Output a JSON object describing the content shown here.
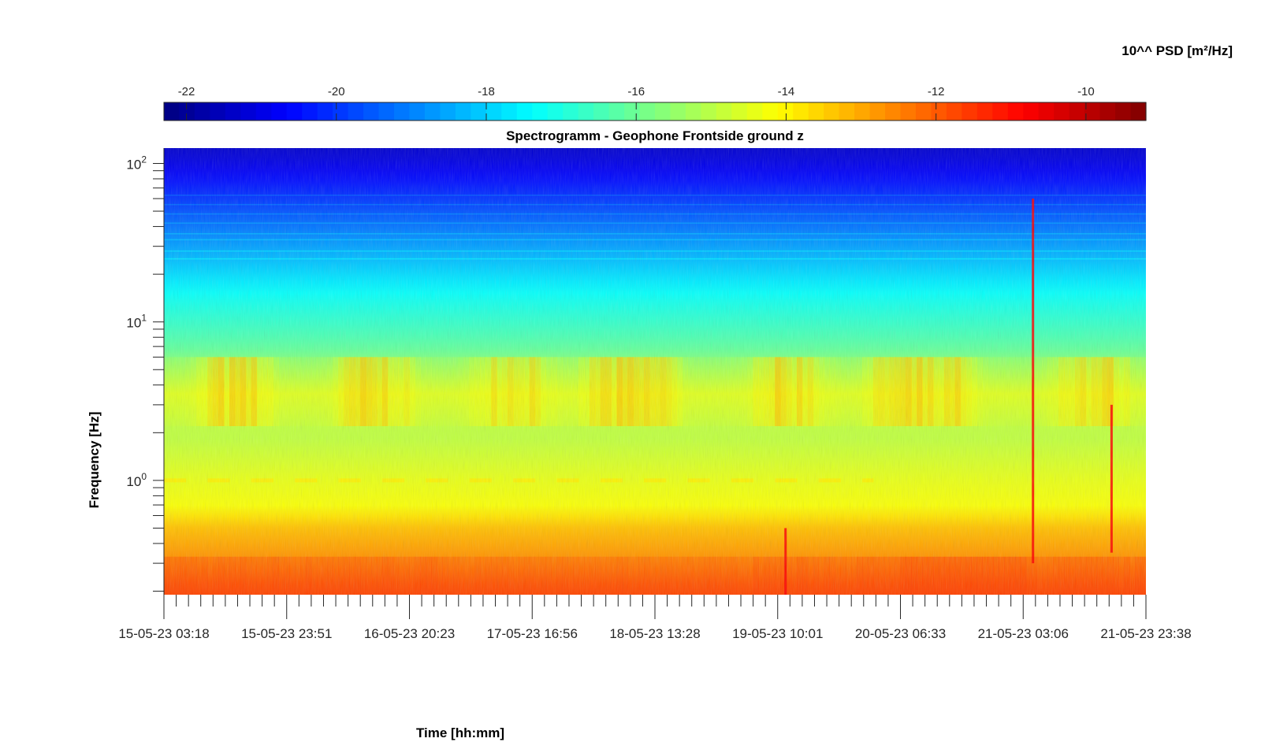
{
  "chart_data": {
    "type": "heatmap",
    "title": "Spectrogramm - Geophone Frontside ground z",
    "xlabel": "Time [hh:mm]",
    "ylabel": "Frequency [Hz]",
    "colorbar_label": "10^^ PSD [m²/Hz]",
    "colormap": "jet",
    "grid": false,
    "colorbar_position": "top",
    "x_tick_labels": [
      "15-05-23 03:18",
      "15-05-23 23:51",
      "16-05-23 20:23",
      "17-05-23 16:56",
      "18-05-23 13:28",
      "19-05-23 10:01",
      "20-05-23 06:33",
      "21-05-23 03:06",
      "21-05-23 23:38"
    ],
    "x_major_ticks": 8,
    "x_minor_per_major": 10,
    "y_scale": "log",
    "y_tick_labels": [
      {
        "base": "10",
        "exp": "0",
        "value": 1
      },
      {
        "base": "10",
        "exp": "1",
        "value": 10
      },
      {
        "base": "10",
        "exp": "2",
        "value": 100
      }
    ],
    "ylim": [
      0.19,
      125
    ],
    "colorbar_range": [
      -22.3,
      -9.2
    ],
    "colorbar_tick_labels": [
      {
        "label": "-22",
        "value": -22
      },
      {
        "label": "-20",
        "value": -20
      },
      {
        "label": "-18",
        "value": -18
      },
      {
        "label": "-16",
        "value": -16
      },
      {
        "label": "-14",
        "value": -14
      },
      {
        "label": "-12",
        "value": -12
      },
      {
        "label": "-10",
        "value": -10
      }
    ],
    "approx_psd_profile_log10": [
      {
        "freq": 0.2,
        "psd": -11.8
      },
      {
        "freq": 0.3,
        "psd": -12.6
      },
      {
        "freq": 0.5,
        "psd": -13.3
      },
      {
        "freq": 0.7,
        "psd": -14.2
      },
      {
        "freq": 1,
        "psd": -14.4
      },
      {
        "freq": 2,
        "psd": -15.0
      },
      {
        "freq": 3.5,
        "psd": -14.5
      },
      {
        "freq": 7,
        "psd": -16.2
      },
      {
        "freq": 15,
        "psd": -17.3
      },
      {
        "freq": 30,
        "psd": -18.6
      },
      {
        "freq": 60,
        "psd": -20.0
      },
      {
        "freq": 100,
        "psd": -21.0
      },
      {
        "freq": 125,
        "psd": -21.3
      }
    ]
  }
}
